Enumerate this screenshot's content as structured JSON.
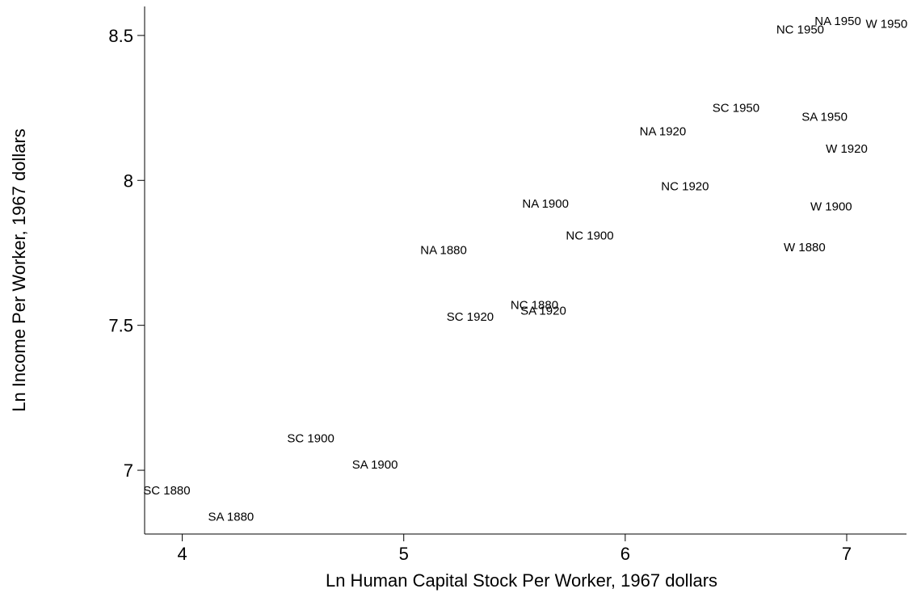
{
  "chart_data": {
    "type": "scatter",
    "title": "",
    "xlabel": "Ln Human Capital Stock Per Worker, 1967 dollars",
    "ylabel": "Ln Income Per Worker, 1967 dollars",
    "xlim": [
      3.83,
      7.27
    ],
    "ylim": [
      6.78,
      8.6
    ],
    "xticks": [
      4,
      5,
      6,
      7
    ],
    "yticks": [
      7,
      7.5,
      8,
      8.5
    ],
    "xtick_labels": [
      "4",
      "5",
      "6",
      "7"
    ],
    "ytick_labels": [
      "7",
      "7.5",
      "8",
      "8.5"
    ],
    "grid": false,
    "marker": "label-only",
    "points": [
      {
        "label": "SC 1880",
        "x": 3.93,
        "y": 6.93
      },
      {
        "label": "SA 1880",
        "x": 4.22,
        "y": 6.84
      },
      {
        "label": "SC 1900",
        "x": 4.58,
        "y": 7.11
      },
      {
        "label": "SA 1900",
        "x": 4.87,
        "y": 7.02
      },
      {
        "label": "NA 1880",
        "x": 5.18,
        "y": 7.76
      },
      {
        "label": "SC 1920",
        "x": 5.3,
        "y": 7.53
      },
      {
        "label": "NC 1880",
        "x": 5.59,
        "y": 7.57
      },
      {
        "label": "SA 1920",
        "x": 5.63,
        "y": 7.55
      },
      {
        "label": "NA 1900",
        "x": 5.64,
        "y": 7.92
      },
      {
        "label": "NC 1900",
        "x": 5.84,
        "y": 7.81
      },
      {
        "label": "NC 1920",
        "x": 6.27,
        "y": 7.98
      },
      {
        "label": "NA 1920",
        "x": 6.17,
        "y": 8.17
      },
      {
        "label": "SC 1950",
        "x": 6.5,
        "y": 8.25
      },
      {
        "label": "SA 1950",
        "x": 6.9,
        "y": 8.22
      },
      {
        "label": "W 1920",
        "x": 7.0,
        "y": 8.11
      },
      {
        "label": "W 1900",
        "x": 6.93,
        "y": 7.91
      },
      {
        "label": "W 1880",
        "x": 6.81,
        "y": 7.77
      },
      {
        "label": "NC 1950",
        "x": 6.79,
        "y": 8.52
      },
      {
        "label": "NA 1950",
        "x": 6.96,
        "y": 8.55
      },
      {
        "label": "W 1950",
        "x": 7.18,
        "y": 8.54
      }
    ]
  }
}
